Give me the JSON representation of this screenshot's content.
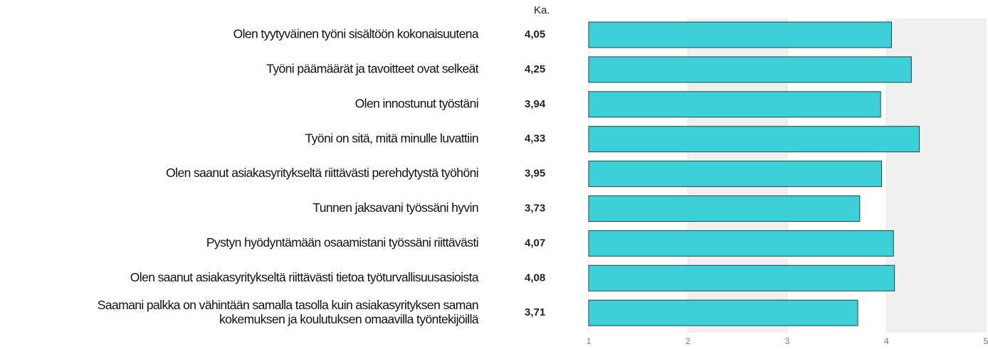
{
  "chart_data": {
    "type": "bar",
    "orientation": "horizontal",
    "value_header": "Ka.",
    "categories": [
      "Olen tyytyväinen työni sisältöön kokonaisuutena",
      "Työni päämäärät ja tavoitteet ovat selkeät",
      "Olen innostunut työstäni",
      "Työni on sitä, mitä minulle luvattiin",
      "Olen saanut asiakasyritykseltä riittävästi perehdytystä työhöni",
      "Tunnen jaksavani työssäni hyvin",
      "Pystyn hyödyntämään osaamistani työssäni riittävästi",
      "Olen saanut asiakasyritykseltä riittävästi tietoa työturvallisuusasioista",
      "Saamani palkka on vähintään samalla tasolla kuin asiakasyrityksen saman\nkokemuksen ja koulutuksen omaavilla työntekijöillä"
    ],
    "values": [
      4.05,
      4.25,
      3.94,
      4.33,
      3.95,
      3.73,
      4.07,
      4.08,
      3.71
    ],
    "value_labels": [
      "4,05",
      "4,25",
      "3,94",
      "4,33",
      "3,95",
      "3,73",
      "4,07",
      "4,08",
      "3,71"
    ],
    "color": "#3dd0d8",
    "xlim": [
      1,
      5
    ],
    "xticks": [
      1,
      2,
      3,
      4,
      5
    ]
  }
}
